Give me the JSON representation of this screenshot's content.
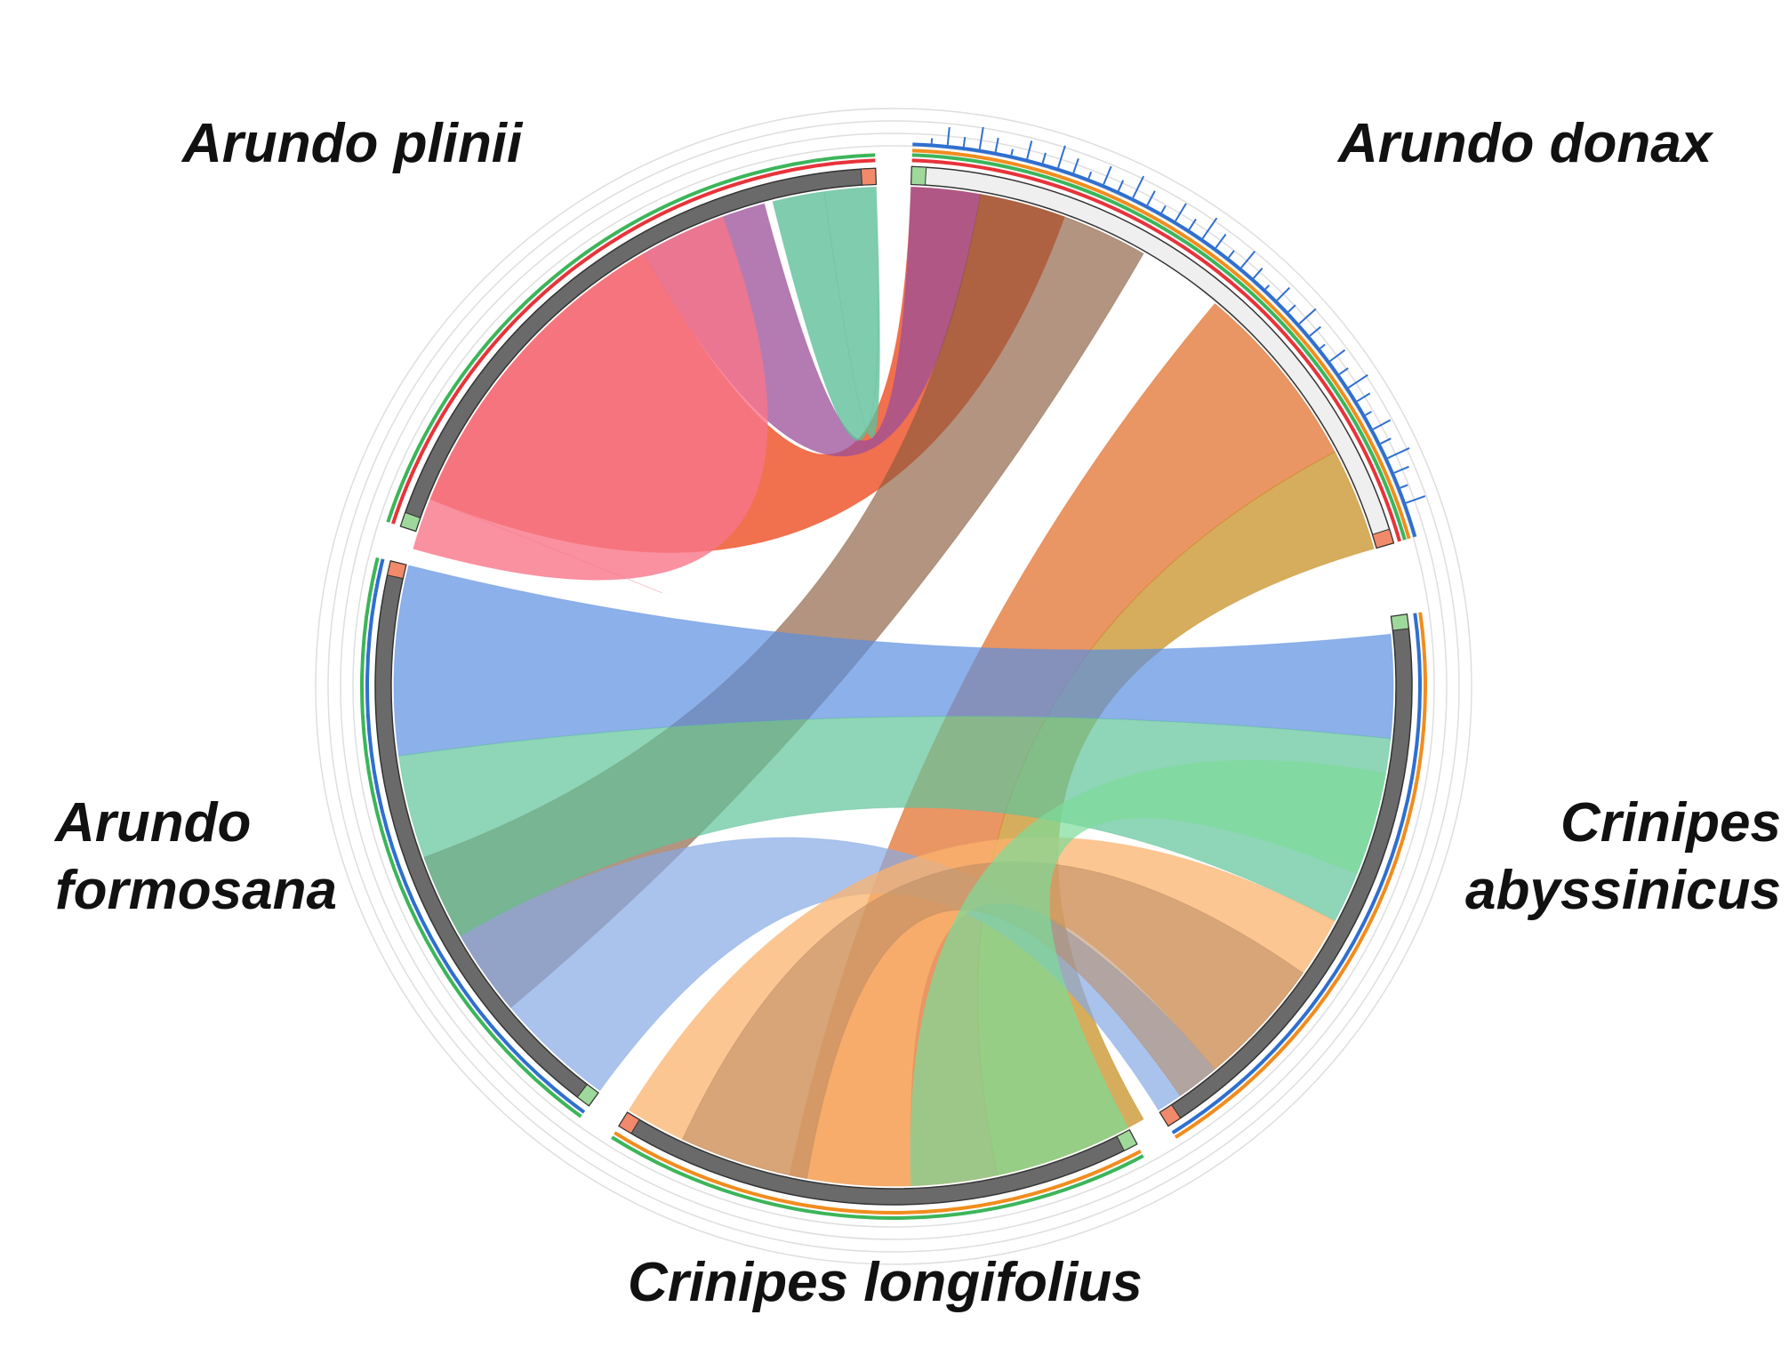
{
  "labels": {
    "arundo_donax": "Arundo donax",
    "arundo_plinii": "Arundo plinii",
    "arundo_formosana_line1": "Arundo",
    "arundo_formosana_line2": "formosana",
    "crinipes_abyssinicus_line1": "Crinipes",
    "crinipes_abyssinicus_line2": "abyssinicus",
    "crinipes_longifolius": "Crinipes longifolius"
  },
  "colors": {
    "donax_band": "#ee4c20",
    "donax_band2": "#8b5a3c",
    "plinii_band": "#f7768a",
    "plinii_band2": "#5fbf9a",
    "formosana_band": "#5b8fe0",
    "formosana_band2": "#5fc39a",
    "longifolius_band": "#fbb36e",
    "abyssinicus_band": "#7cdc98",
    "ideogram_dark": "#6a6a6a",
    "ideogram_light": "#efefef",
    "track_red": "#e8333a",
    "track_green": "#3cb55a",
    "track_blue": "#2f6fd0",
    "track_orange": "#f28c1e"
  }
}
